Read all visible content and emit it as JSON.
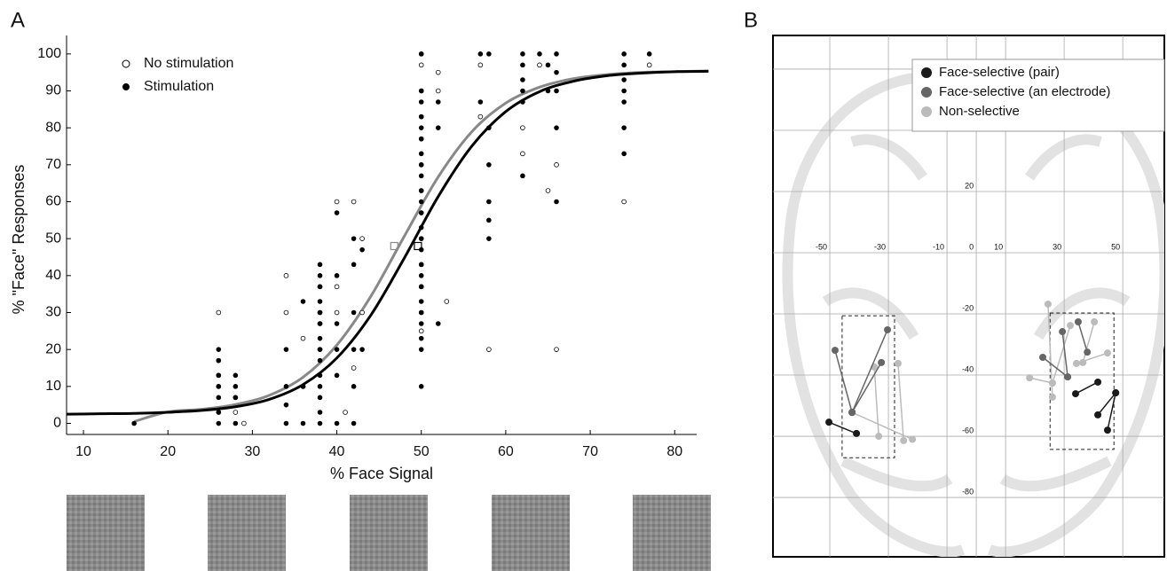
{
  "chart_data": [
    {
      "type": "scatter",
      "panel": "A",
      "xlabel": "% Face Signal",
      "ylabel": "% \"Face\" Responses",
      "xlim": [
        8,
        82.6
      ],
      "ylim": [
        -3,
        105
      ],
      "xticks": [
        10,
        20,
        30,
        40,
        50,
        60,
        70,
        80
      ],
      "yticks": [
        0,
        10,
        20,
        30,
        40,
        50,
        60,
        70,
        80,
        90,
        100
      ],
      "series": [
        {
          "name": "No stimulation",
          "color": "#000000",
          "filled": false,
          "x": [
            26,
            26,
            26,
            26,
            26,
            28,
            28,
            29,
            34,
            34,
            36,
            36,
            38,
            38,
            38,
            38,
            40,
            40,
            40,
            41,
            42,
            42,
            43,
            43,
            50,
            50,
            50,
            50,
            50,
            50,
            50,
            50,
            50,
            50,
            50,
            50,
            50,
            52,
            52,
            53,
            57,
            57,
            58,
            62,
            62,
            64,
            65,
            66,
            66,
            74,
            77
          ],
          "values": [
            3,
            10,
            13,
            17,
            30,
            3,
            7,
            0,
            30,
            40,
            10,
            23,
            20,
            27,
            30,
            37,
            30,
            37,
            60,
            3,
            15,
            60,
            30,
            50,
            25,
            30,
            37,
            43,
            50,
            57,
            63,
            70,
            77,
            83,
            90,
            97,
            100,
            90,
            95,
            33,
            83,
            97,
            20,
            73,
            80,
            97,
            63,
            20,
            70,
            60,
            97
          ]
        },
        {
          "name": "Stimulation",
          "color": "#000000",
          "filled": true,
          "x": [
            16,
            26,
            26,
            26,
            26,
            26,
            26,
            26,
            28,
            28,
            28,
            28,
            34,
            34,
            34,
            34,
            36,
            36,
            36,
            38,
            38,
            38,
            38,
            38,
            38,
            38,
            38,
            38,
            38,
            38,
            38,
            38,
            38,
            40,
            40,
            40,
            40,
            40,
            40,
            42,
            42,
            42,
            42,
            42,
            42,
            43,
            43,
            50,
            50,
            50,
            50,
            50,
            50,
            50,
            50,
            50,
            50,
            50,
            50,
            50,
            50,
            50,
            50,
            50,
            50,
            50,
            50,
            50,
            50,
            50,
            50,
            52,
            52,
            52,
            57,
            57,
            58,
            58,
            58,
            58,
            58,
            58,
            62,
            62,
            62,
            62,
            62,
            62,
            64,
            65,
            65,
            66,
            66,
            66,
            66,
            66,
            74,
            74,
            74,
            74,
            74,
            74,
            74,
            77
          ],
          "values": [
            0,
            0,
            3,
            7,
            10,
            13,
            17,
            20,
            0,
            7,
            10,
            13,
            0,
            5,
            10,
            20,
            0,
            10,
            33,
            0,
            3,
            7,
            10,
            13,
            17,
            20,
            23,
            27,
            30,
            33,
            37,
            40,
            43,
            0,
            13,
            20,
            27,
            40,
            57,
            0,
            10,
            20,
            30,
            43,
            50,
            20,
            47,
            10,
            20,
            23,
            27,
            30,
            33,
            37,
            40,
            43,
            47,
            50,
            53,
            57,
            60,
            63,
            67,
            70,
            73,
            77,
            80,
            83,
            87,
            90,
            100,
            27,
            80,
            87,
            87,
            100,
            50,
            55,
            60,
            70,
            80,
            100,
            67,
            87,
            90,
            93,
            97,
            100,
            100,
            90,
            97,
            60,
            80,
            90,
            95,
            100,
            73,
            80,
            87,
            90,
            93,
            97,
            100,
            100
          ]
        }
      ],
      "curves": [
        {
          "color": "#888888",
          "x": [
            16,
            20,
            24,
            28,
            32,
            36,
            40,
            44,
            48,
            52,
            56,
            60,
            64,
            68,
            72,
            76,
            80,
            84
          ],
          "values": [
            0.5,
            3.1,
            3.8,
            5.1,
            7.6,
            12.5,
            21.2,
            34.3,
            50.7,
            66.7,
            79.0,
            86.7,
            91.0,
            93.3,
            94.4,
            95.0,
            95.2,
            95.4
          ]
        },
        {
          "color": "#000000",
          "x": [
            8,
            12,
            16,
            20,
            24,
            28,
            32,
            36,
            40,
            44,
            48,
            52,
            56,
            60,
            64,
            68,
            72,
            76,
            80,
            84
          ],
          "values": [
            2.5,
            2.6,
            2.7,
            3.0,
            3.5,
            4.5,
            6.5,
            10.5,
            17.7,
            29.2,
            44.8,
            61.4,
            75.1,
            84.4,
            89.8,
            92.6,
            94.1,
            94.8,
            95.2,
            95.3
          ]
        }
      ],
      "thresholds": [
        {
          "color": "#888888",
          "x": 46.8,
          "y": 48
        },
        {
          "color": "#000000",
          "x": 49.6,
          "y": 48
        }
      ]
    },
    {
      "type": "electrode-map",
      "panel": "B",
      "xlim": [
        -69.4,
        64.2
      ],
      "ylim": [
        -99.4,
        71
      ],
      "xticks": [
        -50,
        -30,
        -10,
        10,
        30,
        50
      ],
      "yticks": [
        20,
        0,
        -20,
        -40,
        -60,
        -80
      ],
      "regions": [
        {
          "x": [
            -45.8,
            -27.9
          ],
          "y": [
            -20.6,
            -67
          ]
        },
        {
          "x": [
            25.2,
            47
          ],
          "y": [
            -19.7,
            -64.3
          ]
        }
      ],
      "series": [
        {
          "name": "Face-selective (pair)",
          "color": "#1a1a1a",
          "pairs": [
            {
              "x": [
                -50.3,
                -40.9
              ],
              "y": [
                -55.4,
                -59.1
              ]
            },
            {
              "x": [
                33.9,
                41.5
              ],
              "y": [
                -46.1,
                -42.3
              ]
            },
            {
              "x": [
                41.5,
                47.6
              ],
              "y": [
                -53,
                -45.8
              ]
            },
            {
              "x": [
                44.8,
                47.6
              ],
              "y": [
                -58,
                -45.8
              ]
            }
          ]
        },
        {
          "name": "Face-selective (an electrode)",
          "color": "#666666",
          "pairs": [
            {
              "x": [
                -42.4,
                -48.2
              ],
              "y": [
                -52.2,
                -31.9
              ]
            },
            {
              "x": [
                -42.4,
                -30.3
              ],
              "y": [
                -52.2,
                -25.2
              ]
            },
            {
              "x": [
                -42.4,
                -32.4
              ],
              "y": [
                -52.2,
                -35.9
              ]
            },
            {
              "x": [
                29.4,
                31.2
              ],
              "y": [
                -25.8,
                -40.6
              ]
            },
            {
              "x": [
                22.7,
                31.2
              ],
              "y": [
                -34.2,
                -40.6
              ]
            },
            {
              "x": [
                34.8,
                37.9
              ],
              "y": [
                -22.6,
                -32.5
              ]
            }
          ]
        },
        {
          "name": "Non-selective",
          "color": "#bbbbbb",
          "pairs": [
            {
              "x": [
                -34.8,
                -33.3
              ],
              "y": [
                -37.4,
                -60
              ]
            },
            {
              "x": [
                -26.7,
                -24.8
              ],
              "y": [
                -36.2,
                -61.4
              ]
            },
            {
              "x": [
                -42.4,
                -21.8
              ],
              "y": [
                -52.2,
                -61
              ]
            },
            {
              "x": [
                24.5,
                26
              ],
              "y": [
                -16.8,
                -47.2
              ]
            },
            {
              "x": [
                32.1,
                26
              ],
              "y": [
                -23.8,
                -42.6
              ]
            },
            {
              "x": [
                40.3,
                36.4
              ],
              "y": [
                -22.6,
                -35.9
              ]
            },
            {
              "x": [
                44.8,
                34.2
              ],
              "y": [
                -32.8,
                -36.2
              ]
            },
            {
              "x": [
                18.2,
                26
              ],
              "y": [
                -40.9,
                -42.6
              ]
            }
          ]
        }
      ]
    }
  ]
}
